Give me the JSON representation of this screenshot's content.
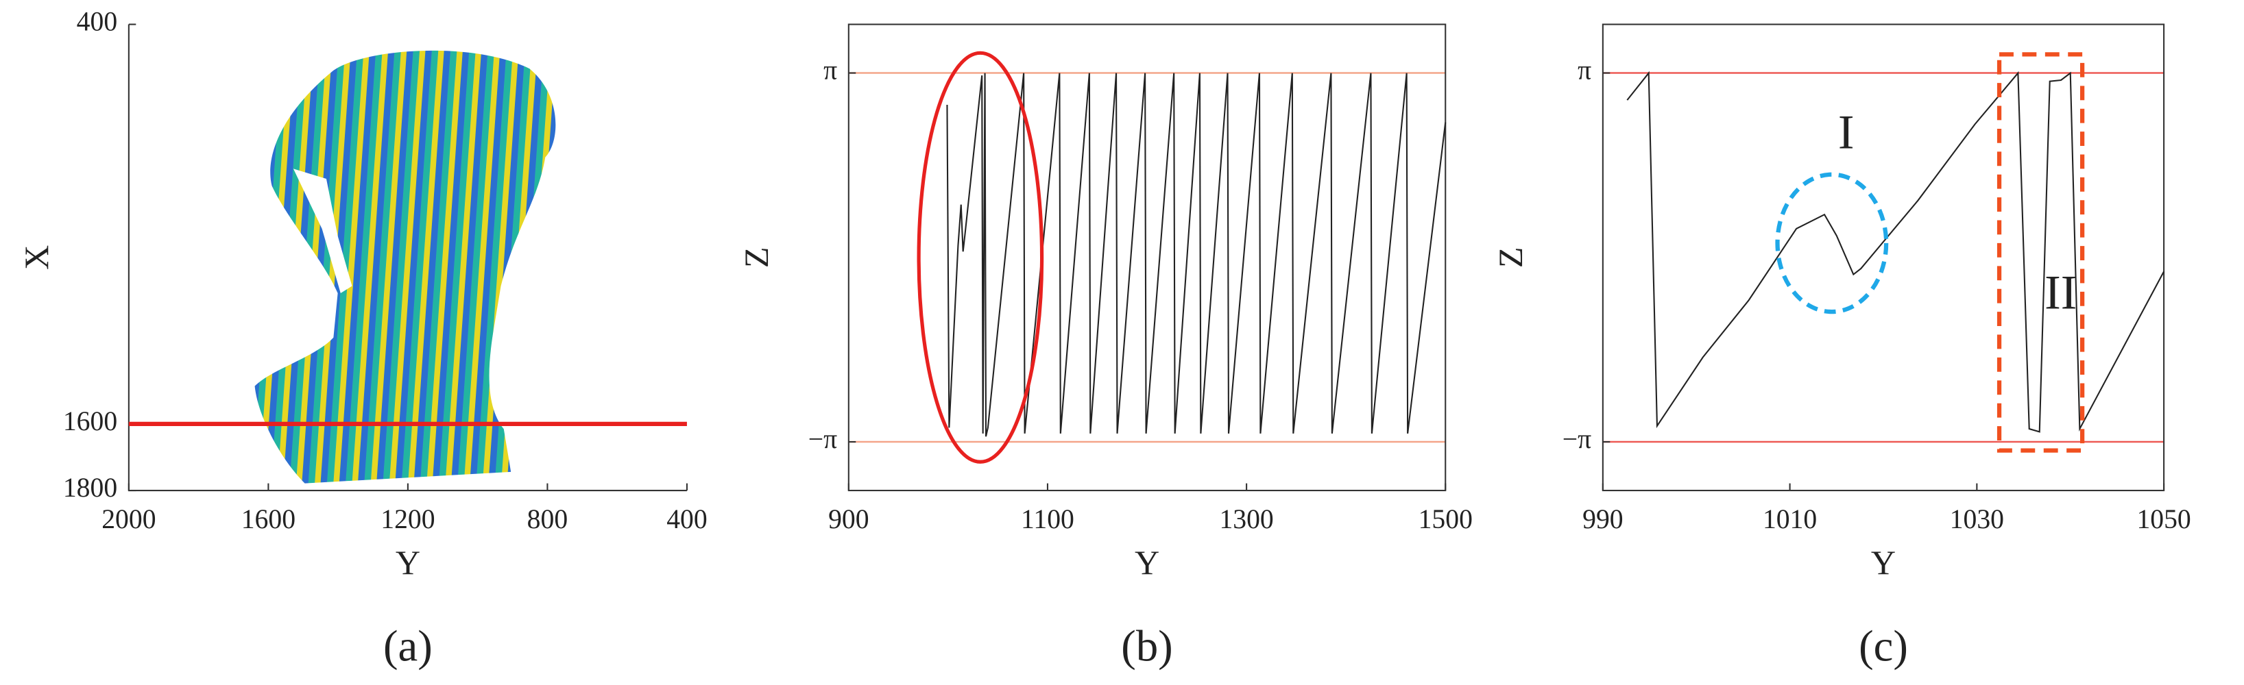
{
  "chart_data": [
    {
      "type": "image",
      "label": "(a)",
      "xlabel": "Y",
      "ylabel": "X",
      "xlim": [
        2000,
        400
      ],
      "xticks": [
        2000,
        1600,
        1200,
        800,
        400
      ],
      "ylim": [
        1800,
        400
      ],
      "yticks": [
        400,
        1600,
        1800
      ],
      "hline": 1600,
      "hline_color": "#e8211f",
      "box": false
    },
    {
      "type": "line",
      "label": "(b)",
      "xlabel": "Y",
      "ylabel": "Z",
      "xlim": [
        900,
        1500
      ],
      "xticks": [
        900,
        1100,
        1300,
        1500
      ],
      "ylim": [
        -3.97,
        3.97
      ],
      "yticks": [
        {
          "value": -3.14159,
          "label": "−π"
        },
        {
          "value": 3.14159,
          "label": "π"
        }
      ],
      "grid": true,
      "grid_color": "#f4a58a",
      "box": true,
      "x": [
        999,
        1001,
        1010,
        1013,
        1015,
        1017,
        1034,
        1035,
        1037,
        1038,
        1040,
        1076,
        1077,
        1112,
        1113,
        1142,
        1143,
        1169,
        1170,
        1198,
        1199,
        1227,
        1228,
        1253,
        1254,
        1281,
        1282,
        1313,
        1314,
        1346,
        1347,
        1385,
        1386,
        1425,
        1426,
        1461,
        1462,
        1500
      ],
      "series": [
        {
          "color": "#222222",
          "values": [
            2.6,
            -2.9,
            0.2,
            0.9,
            0.1,
            0.4,
            3.1,
            -3.0,
            3.14,
            -3.05,
            -2.9,
            3.14,
            -3.0,
            3.14,
            -3.0,
            3.14,
            -3.0,
            3.14,
            -3.0,
            3.14,
            -3.0,
            3.14,
            -3.0,
            3.14,
            -3.0,
            3.14,
            -3.0,
            3.14,
            -3.0,
            3.14,
            -3.0,
            3.14,
            -3.0,
            3.14,
            -3.0,
            3.14,
            -3.0,
            2.3
          ]
        }
      ]
    },
    {
      "type": "line",
      "label": "(c)",
      "xlabel": "Y",
      "ylabel": "Z",
      "xlim": [
        990,
        1050
      ],
      "xticks": [
        990,
        1010,
        1030,
        1050
      ],
      "ylim": [
        -3.97,
        3.97
      ],
      "yticks": [
        {
          "value": -3.14159,
          "label": "−π"
        },
        {
          "value": 3.14159,
          "label": "π"
        }
      ],
      "grid": true,
      "grid_color": "#ee5a55",
      "box": true,
      "x": [
        992.6,
        994.9,
        995.8,
        1000.7,
        1005.6,
        1010.7,
        1013.7,
        1015,
        1016.8,
        1017.6,
        1023.7,
        1029.8,
        1034.4,
        1035.6,
        1036.7,
        1037.8,
        1039,
        1040,
        1041,
        1050
      ],
      "series": [
        {
          "color": "#222222",
          "values": [
            2.68,
            3.14,
            -2.87,
            -1.7,
            -0.73,
            0.49,
            0.73,
            0.37,
            -0.29,
            -0.19,
            0.97,
            2.27,
            3.14,
            -2.92,
            -2.97,
            3.0,
            3.02,
            3.14,
            -2.92,
            -0.24
          ]
        }
      ],
      "annotations": [
        {
          "text": "I"
        },
        {
          "text": "II"
        }
      ]
    }
  ]
}
